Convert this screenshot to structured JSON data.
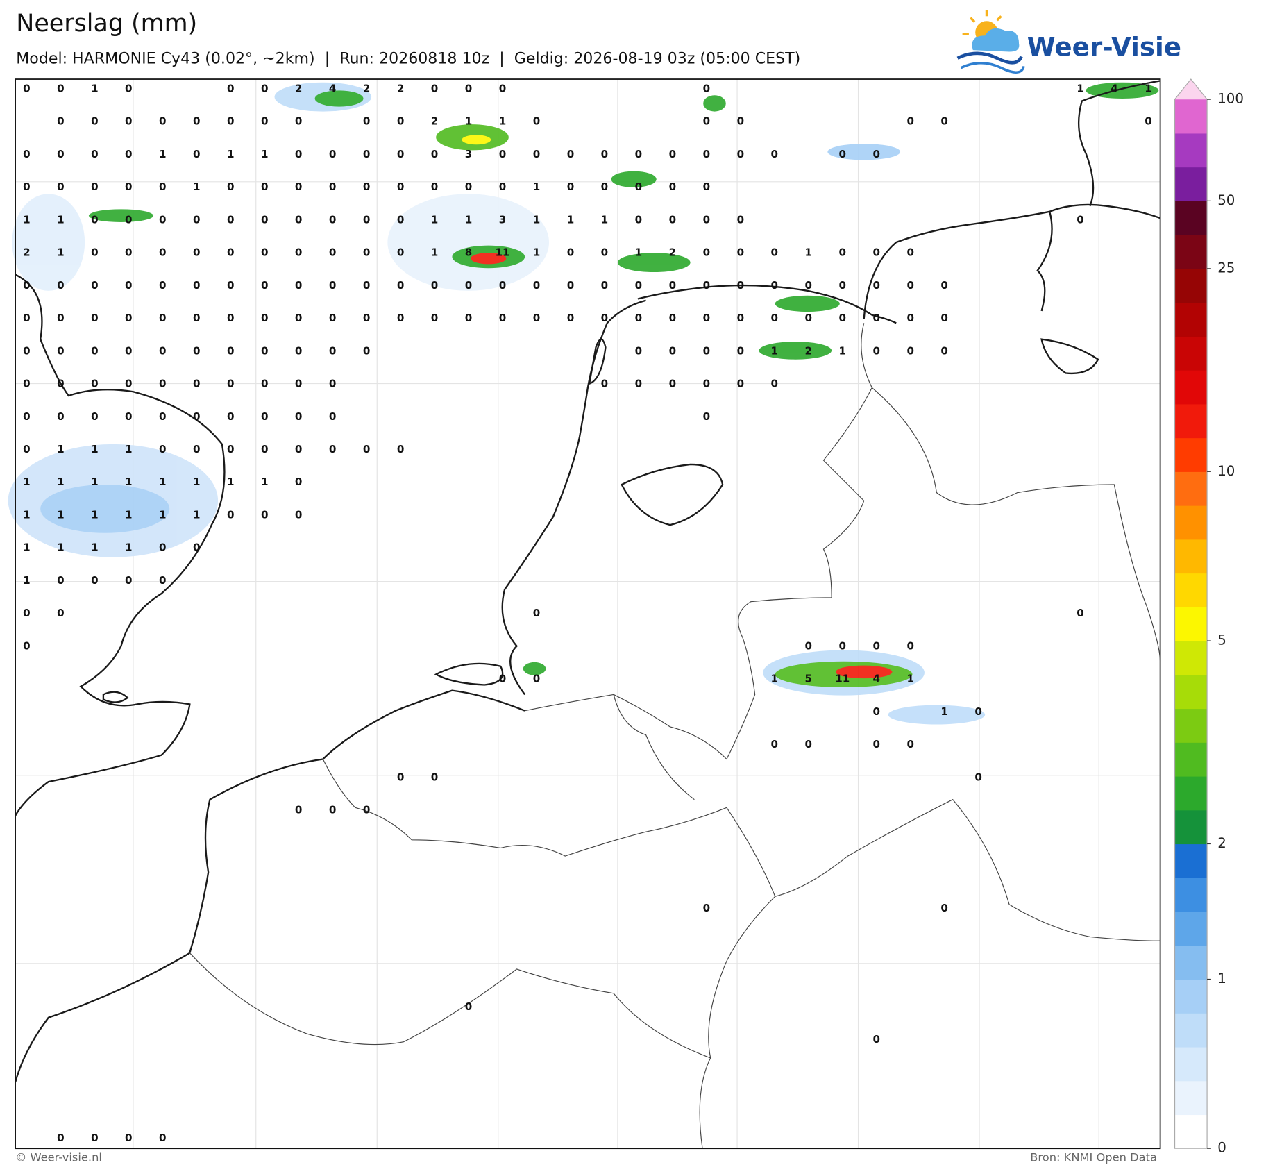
{
  "header": {
    "title": "Neerslag (mm)",
    "subtitle": "Model: HARMONIE Cy43 (0.02°, ~2km)  |  Run: 20260818 10z  |  Geldig: 2026-08-19 03z (05:00 CEST)",
    "logo": "Weer-Visie"
  },
  "map": {
    "values": [
      [
        0,
        0,
        1,
        0,
        null,
        null,
        0,
        0,
        2,
        4,
        2,
        2,
        0,
        0,
        0,
        null,
        null,
        null,
        null,
        null,
        0,
        null,
        null,
        null,
        null,
        null,
        null,
        null,
        null,
        null,
        null,
        1,
        4,
        1
      ],
      [
        null,
        0,
        0,
        0,
        0,
        0,
        0,
        0,
        0,
        null,
        0,
        0,
        2,
        1,
        1,
        0,
        null,
        null,
        null,
        null,
        0,
        0,
        null,
        null,
        null,
        null,
        0,
        0,
        null,
        null,
        null,
        null,
        null,
        0
      ],
      [
        0,
        0,
        0,
        0,
        1,
        0,
        1,
        1,
        0,
        0,
        0,
        0,
        0,
        3,
        0,
        0,
        0,
        0,
        0,
        0,
        0,
        0,
        0,
        null,
        0,
        0,
        null,
        null,
        null,
        null,
        null,
        null,
        null,
        null
      ],
      [
        0,
        0,
        0,
        0,
        0,
        1,
        0,
        0,
        0,
        0,
        0,
        0,
        0,
        0,
        0,
        1,
        0,
        0,
        0,
        0,
        0,
        null,
        null,
        null,
        null,
        null,
        null,
        null,
        null,
        null,
        null,
        null,
        null,
        null
      ],
      [
        1,
        1,
        0,
        0,
        0,
        0,
        0,
        0,
        0,
        0,
        0,
        0,
        1,
        1,
        3,
        1,
        1,
        1,
        0,
        0,
        0,
        0,
        null,
        null,
        null,
        null,
        null,
        null,
        null,
        null,
        null,
        0,
        null,
        null
      ],
      [
        2,
        1,
        0,
        0,
        0,
        0,
        0,
        0,
        0,
        0,
        0,
        0,
        1,
        8,
        11,
        1,
        0,
        0,
        1,
        2,
        0,
        0,
        0,
        1,
        0,
        0,
        0,
        null,
        null,
        null,
        null,
        null,
        null,
        null
      ],
      [
        0,
        0,
        0,
        0,
        0,
        0,
        0,
        0,
        0,
        0,
        0,
        0,
        0,
        0,
        0,
        0,
        0,
        0,
        0,
        0,
        0,
        0,
        0,
        0,
        0,
        0,
        0,
        0,
        null,
        null,
        null,
        null,
        null,
        null
      ],
      [
        0,
        0,
        0,
        0,
        0,
        0,
        0,
        0,
        0,
        0,
        0,
        0,
        0,
        0,
        0,
        0,
        0,
        0,
        0,
        0,
        0,
        0,
        0,
        0,
        0,
        0,
        0,
        0,
        null,
        null,
        null,
        null,
        null,
        null
      ],
      [
        0,
        0,
        0,
        0,
        0,
        0,
        0,
        0,
        0,
        0,
        0,
        null,
        null,
        null,
        null,
        null,
        null,
        null,
        0,
        0,
        0,
        0,
        1,
        2,
        1,
        0,
        0,
        0,
        null,
        null,
        null,
        null,
        null,
        null
      ],
      [
        0,
        0,
        0,
        0,
        0,
        0,
        0,
        0,
        0,
        0,
        null,
        null,
        null,
        null,
        null,
        null,
        null,
        0,
        0,
        0,
        0,
        0,
        0,
        null,
        null,
        null,
        null,
        null,
        null,
        null,
        null,
        null,
        null,
        null
      ],
      [
        0,
        0,
        0,
        0,
        0,
        0,
        0,
        0,
        0,
        0,
        null,
        null,
        null,
        null,
        null,
        null,
        null,
        null,
        null,
        null,
        0,
        null,
        null,
        null,
        null,
        null,
        null,
        null,
        null,
        null,
        null,
        null,
        null,
        null
      ],
      [
        0,
        1,
        1,
        1,
        0,
        0,
        0,
        0,
        0,
        0,
        0,
        0,
        null,
        null,
        null,
        null,
        null,
        null,
        null,
        null,
        null,
        null,
        null,
        null,
        null,
        null,
        null,
        null,
        null,
        null,
        null,
        null,
        null,
        null
      ],
      [
        1,
        1,
        1,
        1,
        1,
        1,
        1,
        1,
        0,
        null,
        null,
        null,
        null,
        null,
        null,
        null,
        null,
        null,
        null,
        null,
        null,
        null,
        null,
        null,
        null,
        null,
        null,
        null,
        null,
        null,
        null,
        null,
        null,
        null
      ],
      [
        1,
        1,
        1,
        1,
        1,
        1,
        0,
        0,
        0,
        null,
        null,
        null,
        null,
        null,
        null,
        null,
        null,
        null,
        null,
        null,
        null,
        null,
        null,
        null,
        null,
        null,
        null,
        null,
        null,
        null,
        null,
        null,
        null,
        null
      ],
      [
        1,
        1,
        1,
        1,
        0,
        0,
        null,
        null,
        null,
        null,
        null,
        null,
        null,
        null,
        null,
        null,
        null,
        null,
        null,
        null,
        null,
        null,
        null,
        null,
        null,
        null,
        null,
        null,
        null,
        null,
        null,
        null,
        null,
        null
      ],
      [
        1,
        0,
        0,
        0,
        0,
        null,
        null,
        null,
        null,
        null,
        null,
        null,
        null,
        null,
        null,
        null,
        null,
        null,
        null,
        null,
        null,
        null,
        null,
        null,
        null,
        null,
        null,
        null,
        null,
        null,
        null,
        null,
        null,
        null
      ],
      [
        0,
        0,
        null,
        null,
        null,
        null,
        null,
        null,
        null,
        null,
        null,
        null,
        null,
        null,
        null,
        0,
        null,
        null,
        null,
        null,
        null,
        null,
        null,
        null,
        null,
        null,
        null,
        null,
        null,
        null,
        null,
        0,
        null,
        null
      ],
      [
        0,
        null,
        null,
        null,
        null,
        null,
        null,
        null,
        null,
        null,
        null,
        null,
        null,
        null,
        null,
        null,
        null,
        null,
        null,
        null,
        null,
        null,
        null,
        0,
        0,
        0,
        0,
        null,
        null,
        null,
        null,
        null,
        null,
        null
      ],
      [
        null,
        null,
        null,
        null,
        null,
        null,
        null,
        null,
        null,
        null,
        null,
        null,
        null,
        null,
        0,
        0,
        null,
        null,
        null,
        null,
        null,
        null,
        1,
        5,
        11,
        4,
        1,
        null,
        null,
        null,
        null,
        null,
        null,
        null
      ],
      [
        null,
        null,
        null,
        null,
        null,
        null,
        null,
        null,
        null,
        null,
        null,
        null,
        null,
        null,
        null,
        null,
        null,
        null,
        null,
        null,
        null,
        null,
        null,
        null,
        null,
        0,
        null,
        1,
        0,
        null,
        null,
        null,
        null,
        null
      ],
      [
        null,
        null,
        null,
        null,
        null,
        null,
        null,
        null,
        null,
        null,
        null,
        null,
        null,
        null,
        null,
        null,
        null,
        null,
        null,
        null,
        null,
        null,
        0,
        0,
        null,
        0,
        0,
        null,
        null,
        null,
        null,
        null,
        null,
        null
      ],
      [
        null,
        null,
        null,
        null,
        null,
        null,
        null,
        null,
        null,
        null,
        null,
        0,
        0,
        null,
        null,
        null,
        null,
        null,
        null,
        null,
        null,
        null,
        null,
        null,
        null,
        null,
        null,
        null,
        0,
        null,
        null,
        null,
        null,
        null
      ],
      [
        null,
        null,
        null,
        null,
        null,
        null,
        null,
        null,
        0,
        0,
        0,
        null,
        null,
        null,
        null,
        null,
        null,
        null,
        null,
        null,
        null,
        null,
        null,
        null,
        null,
        null,
        null,
        null,
        null,
        null,
        null,
        null,
        null,
        null
      ],
      [
        null,
        null,
        null,
        null,
        null,
        null,
        null,
        null,
        null,
        null,
        null,
        null,
        null,
        null,
        null,
        null,
        null,
        null,
        null,
        null,
        null,
        null,
        null,
        null,
        null,
        null,
        null,
        null,
        null,
        null,
        null,
        null,
        null,
        null
      ],
      [
        null,
        null,
        null,
        null,
        null,
        null,
        null,
        null,
        null,
        null,
        null,
        null,
        null,
        null,
        null,
        null,
        null,
        null,
        null,
        null,
        null,
        null,
        null,
        null,
        null,
        null,
        null,
        null,
        null,
        null,
        null,
        null,
        null,
        null
      ],
      [
        null,
        null,
        null,
        null,
        null,
        null,
        null,
        null,
        null,
        null,
        null,
        null,
        null,
        null,
        null,
        null,
        null,
        null,
        null,
        null,
        0,
        null,
        null,
        null,
        null,
        null,
        null,
        0,
        null,
        null,
        null,
        null,
        null,
        null
      ],
      [
        null,
        null,
        null,
        null,
        null,
        null,
        null,
        null,
        null,
        null,
        null,
        null,
        null,
        null,
        null,
        null,
        null,
        null,
        null,
        null,
        null,
        null,
        null,
        null,
        null,
        null,
        null,
        null,
        null,
        null,
        null,
        null,
        null,
        null
      ],
      [
        null,
        null,
        null,
        null,
        null,
        null,
        null,
        null,
        null,
        null,
        null,
        null,
        null,
        null,
        null,
        null,
        null,
        null,
        null,
        null,
        null,
        null,
        null,
        null,
        null,
        null,
        null,
        null,
        null,
        null,
        null,
        null,
        null,
        null
      ],
      [
        null,
        null,
        null,
        null,
        null,
        null,
        null,
        null,
        null,
        null,
        null,
        null,
        null,
        0,
        null,
        null,
        null,
        null,
        null,
        null,
        null,
        null,
        null,
        null,
        null,
        null,
        null,
        null,
        null,
        null,
        null,
        null,
        null,
        null
      ],
      [
        null,
        null,
        null,
        null,
        null,
        null,
        null,
        null,
        null,
        null,
        null,
        null,
        null,
        null,
        null,
        null,
        null,
        null,
        null,
        null,
        null,
        null,
        null,
        null,
        null,
        0,
        null,
        null,
        null,
        null,
        null,
        null,
        null,
        null
      ],
      [
        null,
        null,
        null,
        null,
        null,
        null,
        null,
        null,
        null,
        null,
        null,
        null,
        null,
        null,
        null,
        null,
        null,
        null,
        null,
        null,
        null,
        null,
        null,
        null,
        null,
        null,
        null,
        null,
        null,
        null,
        null,
        null,
        null,
        null
      ],
      [
        null,
        null,
        null,
        null,
        null,
        null,
        null,
        null,
        null,
        null,
        null,
        null,
        null,
        null,
        null,
        null,
        null,
        null,
        null,
        null,
        null,
        null,
        null,
        null,
        null,
        null,
        null,
        null,
        null,
        null,
        null,
        null,
        null,
        null
      ],
      [
        null,
        0,
        0,
        0,
        0,
        null,
        null,
        null,
        null,
        null,
        null,
        null,
        null,
        null,
        null,
        null,
        null,
        null,
        null,
        null,
        null,
        null,
        null,
        null,
        null,
        null,
        null,
        null,
        null,
        null,
        null,
        null,
        null,
        null
      ]
    ]
  },
  "colorbar": {
    "ticks": [
      0,
      1,
      2,
      5,
      10,
      25,
      50,
      100
    ],
    "levels": [
      0,
      0.1,
      0.2,
      0.3,
      0.5,
      1,
      1.2,
      1.4,
      1.6,
      2,
      2.5,
      3,
      3.5,
      4,
      4.5,
      5,
      6,
      7,
      8,
      9,
      10,
      12,
      14,
      16,
      18,
      20,
      25,
      30,
      50,
      60,
      80,
      100
    ],
    "colors": [
      "#ffffff",
      "#eaf3fd",
      "#d6e9fb",
      "#bfddf9",
      "#a6cff6",
      "#85bdf0",
      "#5ea6e9",
      "#3d8fe2",
      "#1a6fd3",
      "#15923a",
      "#2ca92c",
      "#50bb20",
      "#7ccb12",
      "#a7dc08",
      "#cfe805",
      "#fcf700",
      "#ffd800",
      "#ffb800",
      "#ff9100",
      "#ff6d10",
      "#ff3c00",
      "#f11a0b",
      "#e10707",
      "#c90505",
      "#b20303",
      "#960505",
      "#7b0515",
      "#5a0322",
      "#7a1e9e",
      "#a63ac0",
      "#e066d0"
    ],
    "over_color": "#fbd5ee"
  },
  "footer": {
    "left": "© Weer-visie.nl",
    "right": "Bron: KNMI Open Data"
  }
}
